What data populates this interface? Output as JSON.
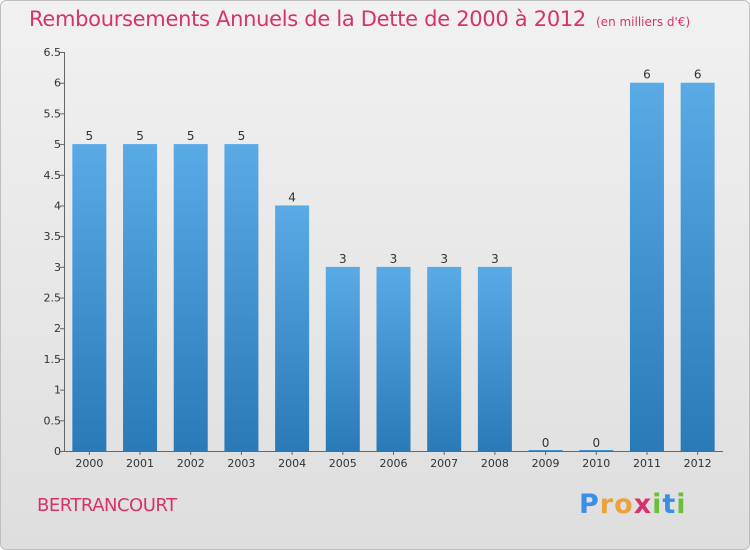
{
  "title": "Remboursements Annuels de la Dette de 2000 à 2012",
  "unit_note": "(en milliers d'€)",
  "commune": "BERTRANCOURT",
  "brand": {
    "letters": [
      "P",
      "r",
      "o",
      "x",
      "i",
      "t",
      "i"
    ]
  },
  "colors": {
    "bar_top": "#5aaae6",
    "bar_bottom": "#2a7ab8",
    "title": "#d6336c"
  },
  "chart_data": {
    "type": "bar",
    "title": "Remboursements Annuels de la Dette de 2000 à 2012",
    "categories": [
      "2000",
      "2001",
      "2002",
      "2003",
      "2004",
      "2005",
      "2006",
      "2007",
      "2008",
      "2009",
      "2010",
      "2011",
      "2012"
    ],
    "values": [
      5,
      5,
      5,
      5,
      4,
      3,
      3,
      3,
      3,
      0,
      0,
      6,
      6
    ],
    "data_labels": [
      "5",
      "5",
      "5",
      "5",
      "4",
      "3",
      "3",
      "3",
      "3",
      "0",
      "0",
      "6",
      "6"
    ],
    "yticks": [
      "0",
      "0.5",
      "1",
      "1.5",
      "2",
      "2.5",
      "3",
      "3.5",
      "4",
      "4.5",
      "5",
      "5.5",
      "6",
      "6.5"
    ],
    "ylim": [
      0,
      6.5
    ],
    "grid": false,
    "legend": "none"
  }
}
